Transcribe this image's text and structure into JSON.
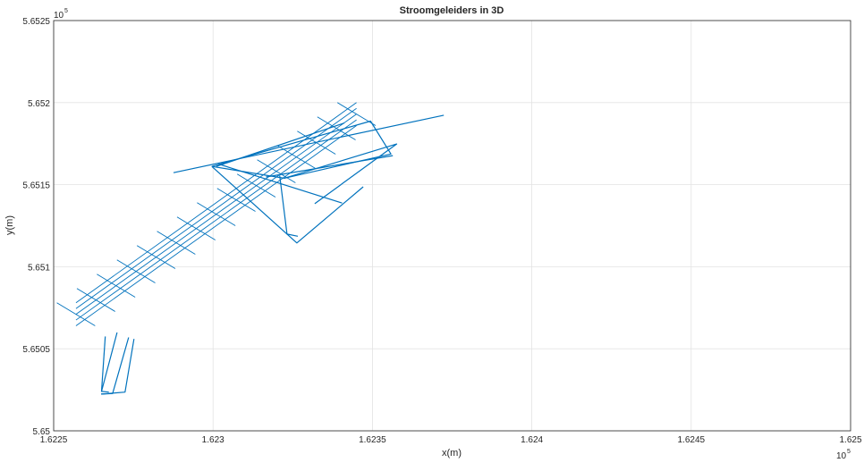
{
  "chart_data": {
    "type": "line",
    "title": "Stroomgeleiders in 3D",
    "xlabel": "x(m)",
    "ylabel": "y(m)",
    "xlim": [
      162250,
      162500
    ],
    "ylim": [
      565000,
      565250
    ],
    "x_ticks": [
      "1.6225",
      "1.623",
      "1.6235",
      "1.624",
      "1.6245",
      "1.625"
    ],
    "y_ticks": [
      "5.65",
      "5.6505",
      "5.651",
      "5.6515",
      "5.652",
      "5.6525"
    ],
    "x_exponent": "10",
    "x_exponent_power": "5",
    "y_exponent": "10",
    "y_exponent_power": "5",
    "grid": true,
    "line_color": "#0072BD",
    "series": [
      {
        "x": [
          162299.6,
          162349.4,
          162355.8,
          162322.3,
          162299.6
        ],
        "y": [
          565161.1,
          565188.7,
          565168.7,
          565153.9,
          565161.1
        ]
      },
      {
        "x": [
          162299.6,
          162326.3,
          162347.1
        ],
        "y": [
          565161.1,
          565114.5,
          565148.7
        ]
      },
      {
        "x": [
          162320.9,
          162323.2,
          162326.6
        ],
        "y": [
          565155.6,
          565119.9,
          565118.6
        ]
      },
      {
        "x": [
          162301.7,
          162340.5
        ],
        "y": [
          565162.6,
          565138.8
        ]
      },
      {
        "x": [
          162287.6,
          162372.4
        ],
        "y": [
          565157.3,
          565192.3
        ]
      },
      {
        "x": [
          162331.9,
          162357.6,
          162322.3
        ],
        "y": [
          565138.4,
          565174.8,
          565153.9
        ]
      },
      {
        "x": [
          162301.0,
          162341.2
        ],
        "y": [
          565161.1,
          565187.6
        ]
      },
      {
        "x": [
          162316.6,
          162356.4
        ],
        "y": [
          565154.7,
          565167.7
        ]
      },
      {
        "x": [
          162269.9,
          162265.0,
          162267.3
        ],
        "y": [
          565059.9,
          565024.0,
          565023.6
        ]
      },
      {
        "x": [
          162266.2,
          162265.0
        ],
        "y": [
          565057.5,
          565024.0
        ]
      },
      {
        "x": [
          162273.5,
          162268.5,
          162264.9
        ],
        "y": [
          565056.9,
          565022.7,
          565022.4
        ]
      },
      {
        "x": [
          162275.2,
          162272.4,
          162264.9
        ],
        "y": [
          565056.0,
          565023.6,
          565022.4
        ]
      }
    ]
  }
}
